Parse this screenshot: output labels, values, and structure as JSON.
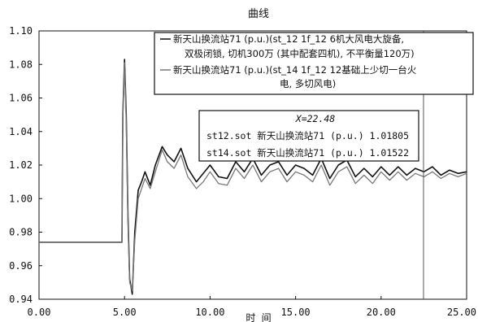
{
  "chart_data": {
    "type": "line",
    "title": "曲线",
    "xlabel": "时 间",
    "ylabel": "",
    "xlim": [
      0,
      25
    ],
    "ylim": [
      0.94,
      1.1
    ],
    "xticks": [
      "0.00",
      "5.00",
      "10.00",
      "15.00",
      "20.00",
      "25.00"
    ],
    "yticks": [
      "0.94",
      "0.96",
      "0.98",
      "1.00",
      "1.02",
      "1.04",
      "1.06",
      "1.08",
      "1.10"
    ],
    "grid": false,
    "legend_position": "top-right",
    "series": [
      {
        "name_lines": [
          "新天山换流站71 (p.u.)(st_12 1f_12 6机大风电大旋备,",
          "双极闭锁, 切机300万 (其中配套四机), 不平衡量120万)"
        ],
        "color": "#111111",
        "x": [
          0,
          4.85,
          4.9,
          5.0,
          5.1,
          5.2,
          5.3,
          5.45,
          5.6,
          5.8,
          6.0,
          6.2,
          6.5,
          6.8,
          7.2,
          7.5,
          7.9,
          8.3,
          8.7,
          9.2,
          9.6,
          10.0,
          10.5,
          11.0,
          11.5,
          12.0,
          12.5,
          13.0,
          13.5,
          14.0,
          14.5,
          15.0,
          15.5,
          16.0,
          16.5,
          17.0,
          17.5,
          18.0,
          18.5,
          19.0,
          19.5,
          20.0,
          20.5,
          21.0,
          21.5,
          22.0,
          22.5,
          23.0,
          23.5,
          24.0,
          24.5,
          25.0
        ],
        "y": [
          0.974,
          0.974,
          1.05,
          1.083,
          1.05,
          0.99,
          0.952,
          0.943,
          0.98,
          1.005,
          1.01,
          1.016,
          1.008,
          1.02,
          1.031,
          1.026,
          1.022,
          1.03,
          1.018,
          1.01,
          1.015,
          1.02,
          1.013,
          1.012,
          1.022,
          1.016,
          1.024,
          1.014,
          1.02,
          1.022,
          1.014,
          1.02,
          1.018,
          1.014,
          1.024,
          1.012,
          1.02,
          1.023,
          1.013,
          1.018,
          1.013,
          1.019,
          1.014,
          1.019,
          1.014,
          1.018,
          1.016,
          1.019,
          1.014,
          1.017,
          1.015,
          1.016
        ]
      },
      {
        "name_lines": [
          "新天山换流站71 (p.u.)(st_14 1f_12 12基础上少切一台火",
          "电, 多切风电)"
        ],
        "color": "#777777",
        "x": [
          0,
          4.85,
          4.9,
          5.0,
          5.1,
          5.2,
          5.3,
          5.45,
          5.6,
          5.8,
          6.0,
          6.2,
          6.5,
          6.8,
          7.2,
          7.5,
          7.9,
          8.3,
          8.7,
          9.2,
          9.6,
          10.0,
          10.5,
          11.0,
          11.5,
          12.0,
          12.5,
          13.0,
          13.5,
          14.0,
          14.5,
          15.0,
          15.5,
          16.0,
          16.5,
          17.0,
          17.5,
          18.0,
          18.5,
          19.0,
          19.5,
          20.0,
          20.5,
          21.0,
          21.5,
          22.0,
          22.5,
          23.0,
          23.5,
          24.0,
          24.5,
          25.0
        ],
        "y": [
          0.974,
          0.974,
          1.048,
          1.081,
          1.045,
          0.985,
          0.95,
          0.945,
          0.975,
          1.0,
          1.006,
          1.012,
          1.006,
          1.016,
          1.029,
          1.022,
          1.018,
          1.026,
          1.013,
          1.006,
          1.01,
          1.016,
          1.009,
          1.008,
          1.018,
          1.012,
          1.02,
          1.01,
          1.016,
          1.018,
          1.01,
          1.016,
          1.014,
          1.01,
          1.02,
          1.008,
          1.016,
          1.019,
          1.009,
          1.014,
          1.009,
          1.016,
          1.011,
          1.016,
          1.011,
          1.015,
          1.013,
          1.016,
          1.012,
          1.015,
          1.013,
          1.015
        ]
      }
    ],
    "cursor": {
      "x": 22.48,
      "x_label": "X=22.48",
      "rows": [
        "st12.sot 新天山换流站71 (p.u.) 1.01805",
        "st14.sot 新天山换流站71 (p.u.) 1.01522"
      ]
    }
  }
}
